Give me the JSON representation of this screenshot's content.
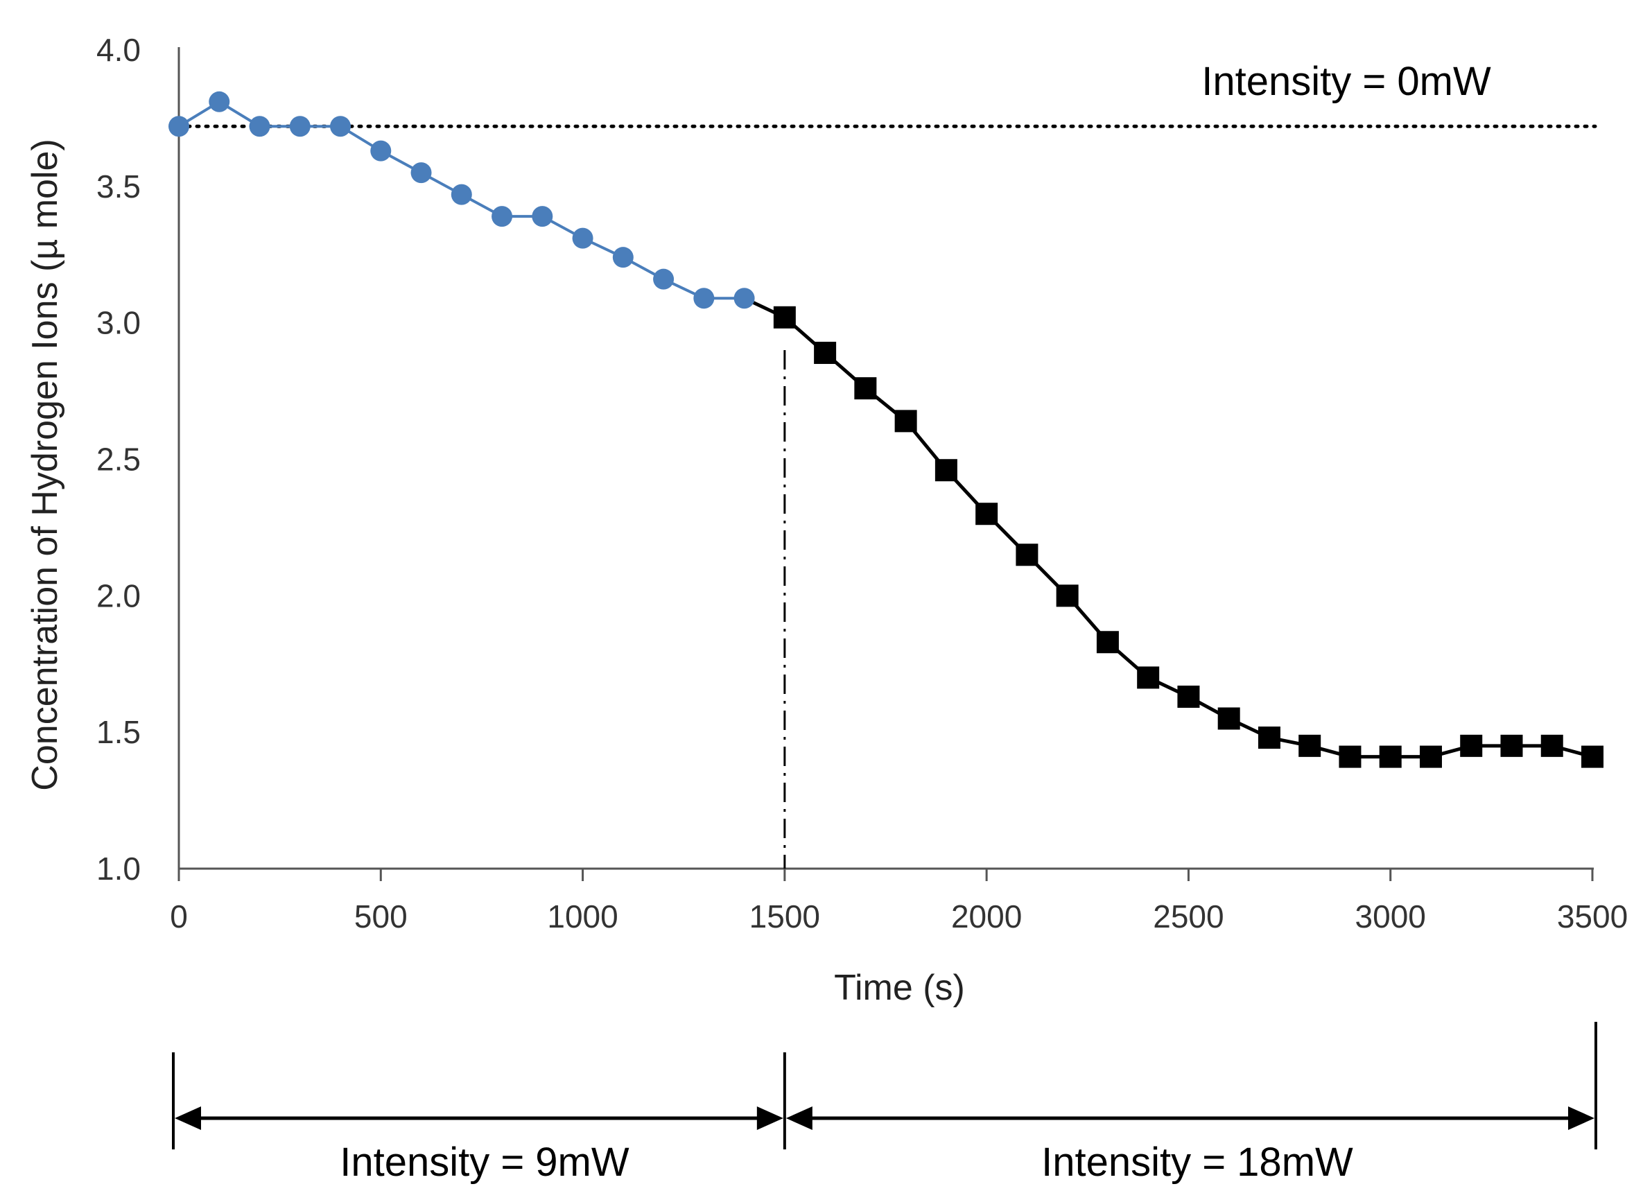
{
  "chart_data": {
    "type": "line",
    "title": "",
    "xlabel": "Time (s)",
    "ylabel": "Concentration of Hydrogen Ions (µ mole)",
    "xlim": [
      0,
      3500
    ],
    "ylim": [
      1.0,
      4.0
    ],
    "x_ticks": [
      0,
      500,
      1000,
      1500,
      2000,
      2500,
      3000,
      3500
    ],
    "x_tick_labels": [
      "0",
      "500",
      "1000",
      "1500",
      "2000",
      "2500",
      "3000",
      "3500"
    ],
    "y_ticks": [
      1.0,
      1.5,
      2.0,
      2.5,
      3.0,
      3.5,
      4.0
    ],
    "y_tick_labels": [
      "1.0",
      "1.5",
      "2.0",
      "2.5",
      "3.0",
      "3.5",
      "4.0"
    ],
    "grid": false,
    "colors": {
      "series_9mw": "#4a7ebb",
      "series_18mw": "#000000",
      "reference": "#000000"
    },
    "series": [
      {
        "name": "Intensity = 9mW",
        "marker": "circle",
        "color": "#4a7ebb",
        "x": [
          0,
          100,
          200,
          300,
          400,
          500,
          600,
          700,
          800,
          900,
          1000,
          1100,
          1200,
          1300,
          1400
        ],
        "y": [
          3.72,
          3.81,
          3.72,
          3.72,
          3.72,
          3.63,
          3.55,
          3.47,
          3.39,
          3.39,
          3.31,
          3.24,
          3.16,
          3.09,
          3.09
        ]
      },
      {
        "name": "Intensity = 18mW",
        "marker": "square",
        "color": "#000000",
        "x": [
          1400,
          1500,
          1600,
          1700,
          1800,
          1900,
          2000,
          2100,
          2200,
          2300,
          2400,
          2500,
          2600,
          2700,
          2800,
          2900,
          3000,
          3100,
          3200,
          3300,
          3400,
          3500
        ],
        "y": [
          3.09,
          3.02,
          2.89,
          2.76,
          2.64,
          2.46,
          2.3,
          2.15,
          2.0,
          1.83,
          1.7,
          1.63,
          1.55,
          1.48,
          1.45,
          1.41,
          1.41,
          1.41,
          1.45,
          1.45,
          1.45,
          1.41
        ]
      }
    ],
    "reference_line": {
      "y": 3.72,
      "style": "dotted",
      "label": "Intensity = 0mW"
    },
    "divider_line": {
      "x": 1500,
      "style": "dash-dot"
    },
    "annotations": [
      {
        "text": "Intensity = 0mW"
      },
      {
        "text": "Intensity = 9mW",
        "x_range": [
          0,
          1500
        ]
      },
      {
        "text": "Intensity = 18mW",
        "x_range": [
          1500,
          3500
        ]
      }
    ]
  }
}
